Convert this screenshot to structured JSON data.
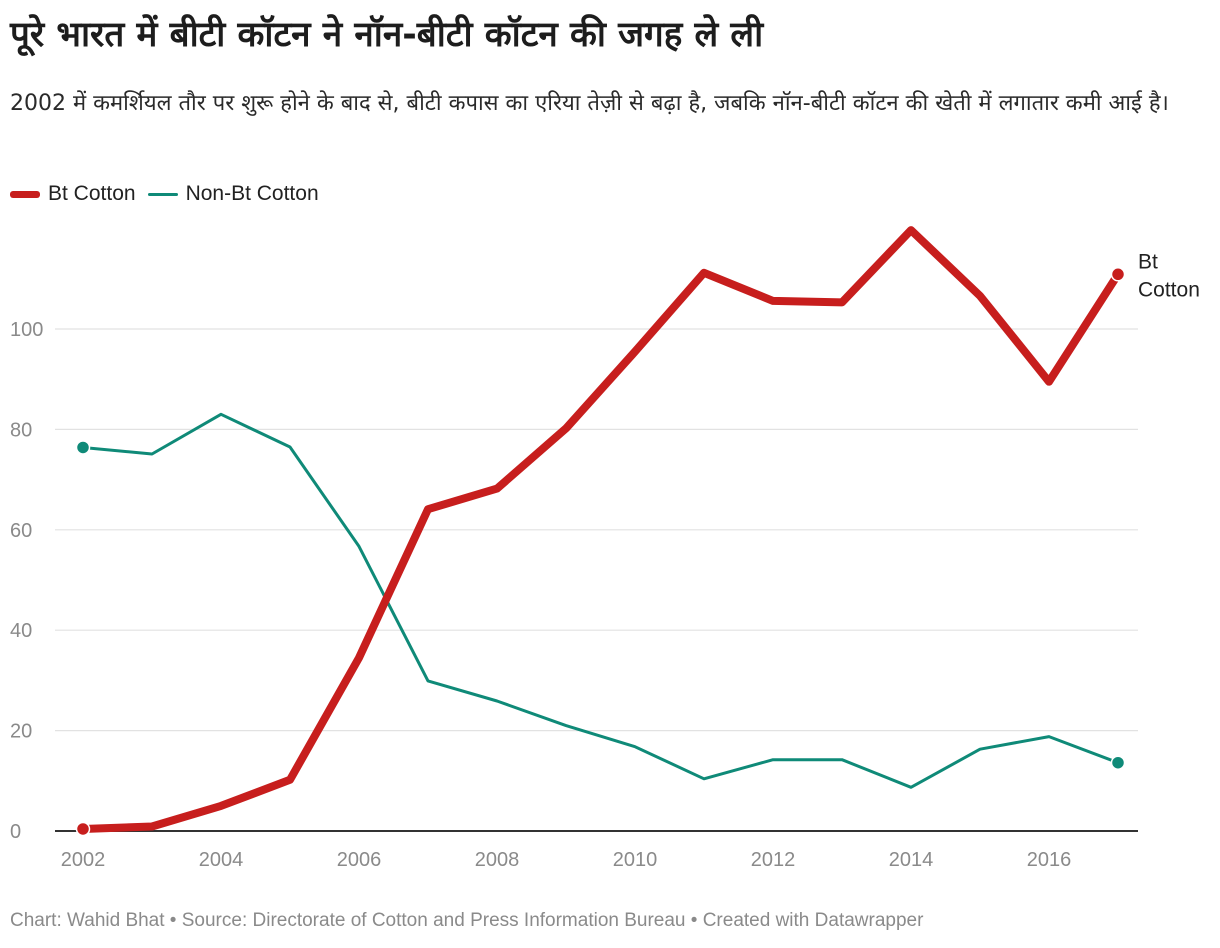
{
  "title": "पूरे भारत में बीटी कॉटन ने नॉन-बीटी कॉटन की जगह ले ली",
  "subtitle": "2002 में कमर्शियल तौर पर शुरू होने के बाद से, बीटी कपास का एरिया तेज़ी से बढ़ा है, जबकि नॉन-बीटी कॉटन की खेती में लगातार कमी आई है।",
  "footer": "Chart: Wahid Bhat • Source: Directorate of Cotton and Press Information Bureau • Created with Datawrapper",
  "colors": {
    "bt": "#c71e1d",
    "nonbt": "#0f8a78",
    "grid": "#e2e2e2",
    "axis": "#333333",
    "tick": "#8a8a8a"
  },
  "chart_data": {
    "type": "line",
    "title": "पूरे भारत में बीटी कॉटन ने नॉन-बीटी कॉटन की जगह ले ली",
    "xlabel": "",
    "ylabel": "",
    "x": [
      2002,
      2003,
      2004,
      2005,
      2006,
      2007,
      2008,
      2009,
      2010,
      2011,
      2012,
      2013,
      2014,
      2015,
      2016,
      2017
    ],
    "xlim": [
      2002,
      2017
    ],
    "ylim": [
      0,
      120
    ],
    "x_ticks": [
      2002,
      2004,
      2006,
      2008,
      2010,
      2012,
      2014,
      2016
    ],
    "y_ticks": [
      0,
      20,
      40,
      60,
      80,
      100
    ],
    "grid": true,
    "legend_position": "top-left",
    "end_label": [
      "Bt",
      "Cotton"
    ],
    "series": [
      {
        "name": "Bt Cotton",
        "color": "#c71e1d",
        "values": [
          0.4,
          0.9,
          5.0,
          10.2,
          34.5,
          64.1,
          68.2,
          80.2,
          95.5,
          111.2,
          105.6,
          105.3,
          119.7,
          106.6,
          89.5,
          110.9
        ]
      },
      {
        "name": "Non-Bt Cotton",
        "color": "#0f8a78",
        "values": [
          76.4,
          75.1,
          83.0,
          76.5,
          56.7,
          29.9,
          25.9,
          21.0,
          16.8,
          10.4,
          14.2,
          14.2,
          8.7,
          16.3,
          18.8,
          13.6
        ]
      }
    ]
  }
}
